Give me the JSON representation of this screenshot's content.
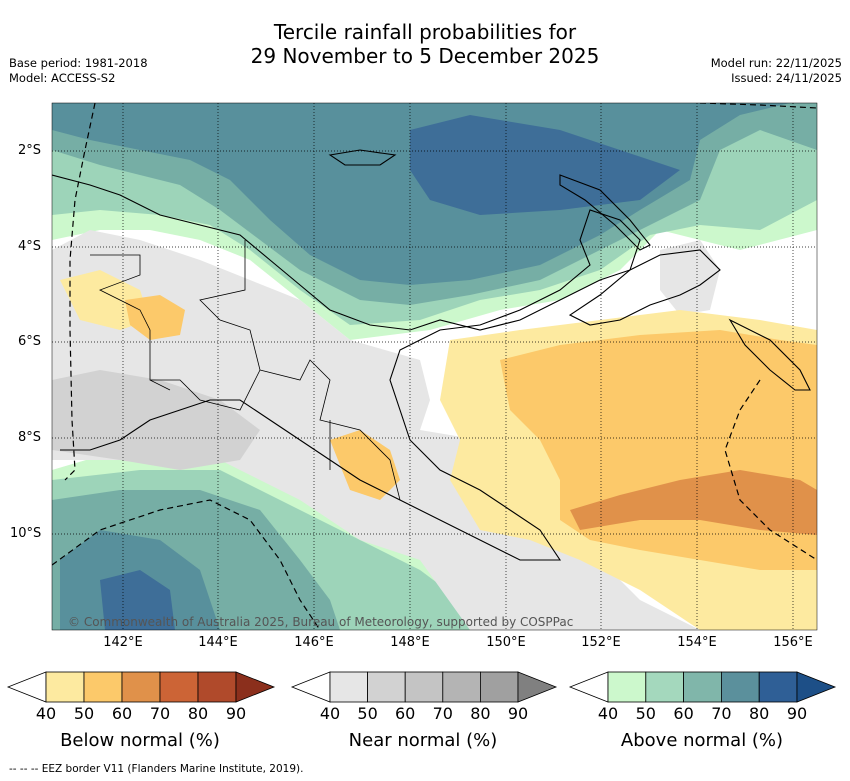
{
  "title": {
    "line1": "Tercile rainfall probabilities for",
    "line2": "29 November to 5 December 2025"
  },
  "meta_left": {
    "base_period": "Base period: 1981-2018",
    "model": "Model: ACCESS-S2"
  },
  "meta_right": {
    "model_run": "Model run: 22/11/2025",
    "issued": "Issued: 24/11/2025"
  },
  "map": {
    "lat_labels": [
      "2°S",
      "4°S",
      "6°S",
      "8°S",
      "10°S"
    ],
    "lon_labels": [
      "142°E",
      "144°E",
      "146°E",
      "148°E",
      "150°E",
      "152°E",
      "154°E",
      "156°E"
    ],
    "copyright": "© Commonwealth of Australia 2025, Bureau of Meteorology, supported by COSPPac",
    "colors": {
      "below_40": "#fdeaa0",
      "below_50": "#fcc96a",
      "below_60": "#e0914a",
      "near_40": "#e6e6e6",
      "near_50": "#d2d2d2",
      "above_40": "#ccf8cc",
      "above_50": "#9dd4b9",
      "above_60": "#76aea5",
      "above_70": "#58909c",
      "above_80": "#3e6e98",
      "above_90": "#244d86"
    }
  },
  "colorbars": [
    {
      "name": "below",
      "title": "Below normal (%)",
      "ticks": [
        "40",
        "50",
        "60",
        "70",
        "80",
        "90"
      ],
      "colors": [
        "#ffffff",
        "#fdeaa0",
        "#fcc96a",
        "#e0914a",
        "#cc6436",
        "#b04a2b",
        "#8b2f1c"
      ]
    },
    {
      "name": "near",
      "title": "Near normal (%)",
      "ticks": [
        "40",
        "50",
        "60",
        "70",
        "80",
        "90"
      ],
      "colors": [
        "#ffffff",
        "#e6e6e6",
        "#d2d2d2",
        "#c4c4c4",
        "#b4b4b4",
        "#a0a0a0",
        "#808080"
      ]
    },
    {
      "name": "above",
      "title": "Above normal (%)",
      "ticks": [
        "40",
        "50",
        "60",
        "70",
        "80",
        "90"
      ],
      "colors": [
        "#ffffff",
        "#ccf8cc",
        "#a4d8bd",
        "#80b6aa",
        "#5b909c",
        "#2f5f96",
        "#1d4f87"
      ]
    }
  ],
  "footnote": "--  --  -- EEZ border V11 (Flanders Marine Institute, 2019)."
}
